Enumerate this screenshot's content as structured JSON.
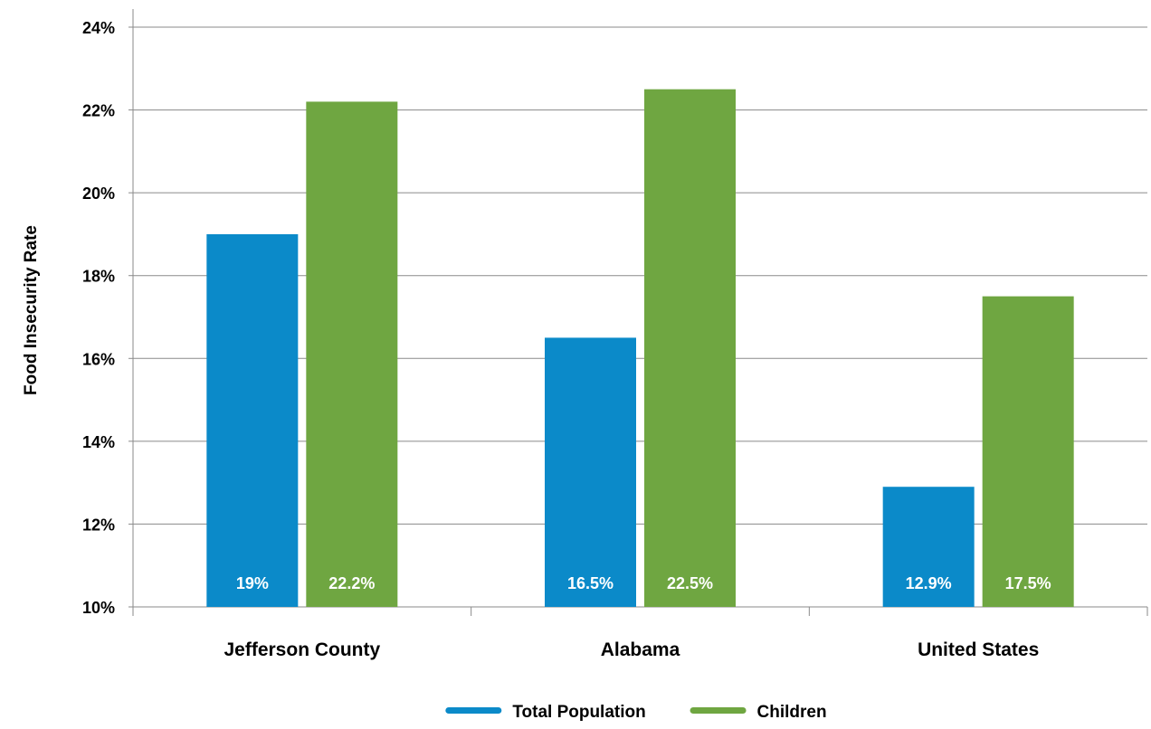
{
  "chart_data": {
    "type": "bar",
    "ylabel": "Food Insecurity Rate",
    "xlabel": "",
    "categories": [
      "Jefferson County",
      "Alabama",
      "United States"
    ],
    "ylim": [
      10,
      24
    ],
    "yticks": [
      "10%",
      "12%",
      "14%",
      "16%",
      "18%",
      "20%",
      "22%",
      "24%"
    ],
    "grid": true,
    "legend_position": "bottom",
    "series": [
      {
        "name": "Total Population",
        "color": "#0b8ac9",
        "values": [
          19,
          16.5,
          12.9
        ],
        "labels": [
          "19%",
          "16.5%",
          "12.9%"
        ]
      },
      {
        "name": "Children",
        "color": "#6fa641",
        "values": [
          22.2,
          22.5,
          17.5
        ],
        "labels": [
          "22.2%",
          "22.5%",
          "17.5%"
        ]
      }
    ]
  }
}
